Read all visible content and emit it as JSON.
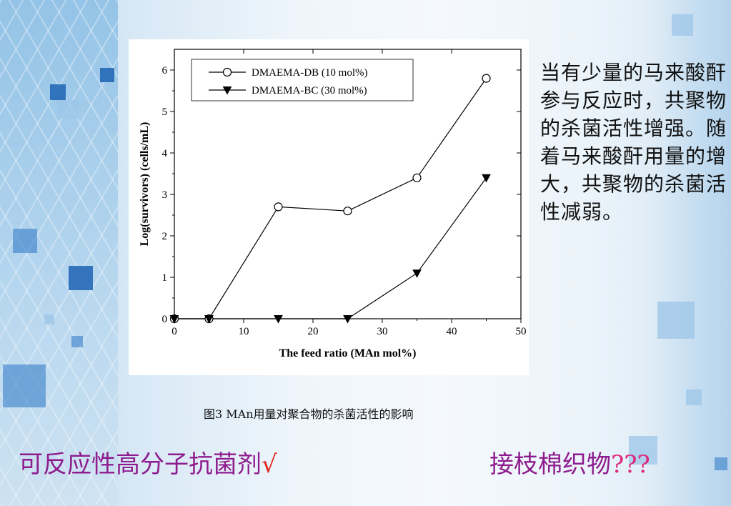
{
  "colors": {
    "title_purple": "#8e1c8e",
    "check_red": "#e0261b",
    "question_pink": "#e0267a",
    "accent_blue": "#2a76c4"
  },
  "chart_data": {
    "type": "line",
    "xlabel": "The feed ratio (MAn mol%)",
    "ylabel": "Log(survivors) (cells/mL)",
    "xlim": [
      0,
      50
    ],
    "ylim": [
      0,
      6.5
    ],
    "x_ticks": [
      0,
      10,
      20,
      30,
      40,
      50
    ],
    "y_ticks": [
      0,
      1,
      2,
      3,
      4,
      5,
      6
    ],
    "grid": false,
    "legend_position": "top-left",
    "series": [
      {
        "name": "DMAEMA-DB (10 mol%)",
        "marker": "open-circle",
        "x": [
          0,
          5,
          15,
          25,
          35,
          45
        ],
        "y": [
          0,
          0,
          2.7,
          2.6,
          3.4,
          5.8
        ]
      },
      {
        "name": "DMAEMA-BC (30 mol%)",
        "marker": "filled-triangle-down",
        "x": [
          0,
          5,
          15,
          25,
          35,
          45
        ],
        "y": [
          0,
          0,
          0,
          0,
          1.1,
          3.4
        ]
      }
    ]
  },
  "caption": "图3 MAn用量对聚合物的杀菌活性的影响",
  "side_text": "当有少量的马来酸酐参与反应时，共聚物的杀菌活性增强。随着马来酸酐用量的增大，共聚物的杀菌活性减弱。",
  "bottom": {
    "left_text": "可反应性高分子抗菌剂",
    "left_mark": "√",
    "right_text": "接枝棉织物",
    "right_mark": "???"
  }
}
